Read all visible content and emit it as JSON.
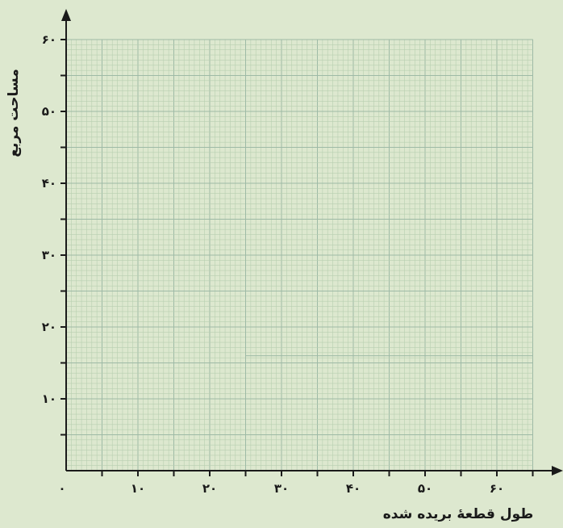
{
  "chart_data": {
    "type": "scatter",
    "title": "",
    "xlabel": "طول قطعهٔ بریده شده",
    "ylabel": "مساحت مربع",
    "xlim": [
      0,
      65
    ],
    "ylim": [
      0,
      60
    ],
    "x_ticks": [
      0,
      10,
      20,
      30,
      40,
      50,
      60
    ],
    "x_tick_labels": [
      "۰",
      "۱۰",
      "۲۰",
      "۳۰",
      "۴۰",
      "۵۰",
      "۶۰"
    ],
    "y_ticks": [
      10,
      20,
      30,
      40,
      50,
      60
    ],
    "y_tick_labels": [
      "۱۰",
      "۲۰",
      "۳۰",
      "۴۰",
      "۵۰",
      "۶۰"
    ],
    "grid": true,
    "series": [],
    "colors": {
      "background": "#dde8cf",
      "grid_fine": "#b8cfb0",
      "grid_major": "#9ebaa6",
      "axis": "#1a1a1a"
    }
  }
}
